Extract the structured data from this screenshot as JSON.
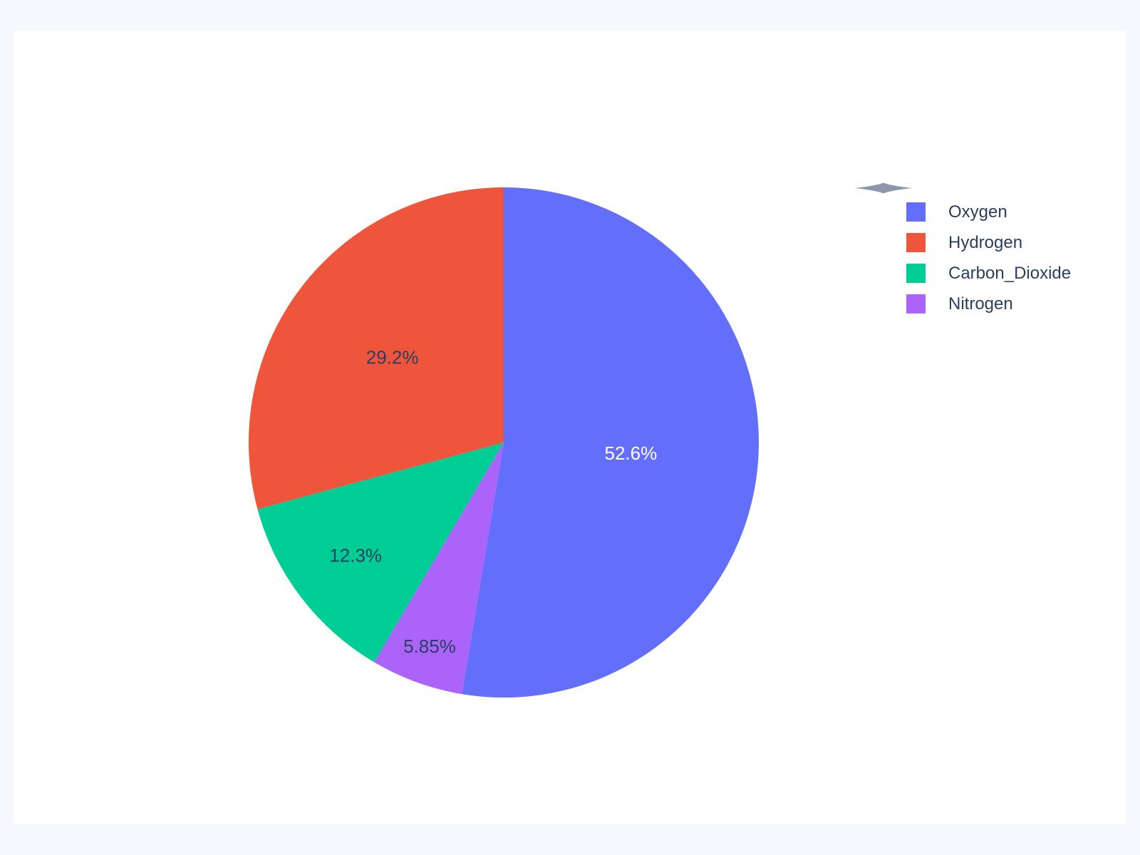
{
  "chart_data": {
    "type": "pie",
    "labels": [
      "Oxygen",
      "Hydrogen",
      "Carbon_Dioxide",
      "Nitrogen"
    ],
    "values": [
      52.6,
      29.2,
      12.3,
      5.85
    ],
    "percent_labels": [
      "52.6%",
      "29.2%",
      "12.3%",
      "5.85%"
    ],
    "colors": [
      "#636EFA",
      "#EF553B",
      "#00CC96",
      "#AB63FA"
    ],
    "inside_text_colors": [
      "#FFFFFF",
      "#2A3F5F",
      "#2A3F5F",
      "#2A3F5F"
    ],
    "title": "",
    "rotation": 0,
    "direction": "counterclockwise",
    "legend_position": "right",
    "labels_inside": true
  },
  "legend": {
    "dart_icon": "dart-spindle-icon",
    "dart_color": "#8B98AB",
    "text_color": "#2A3F5F"
  },
  "page": {
    "background_color": "#F6F8FD",
    "card_color": "#FFFFFF"
  }
}
